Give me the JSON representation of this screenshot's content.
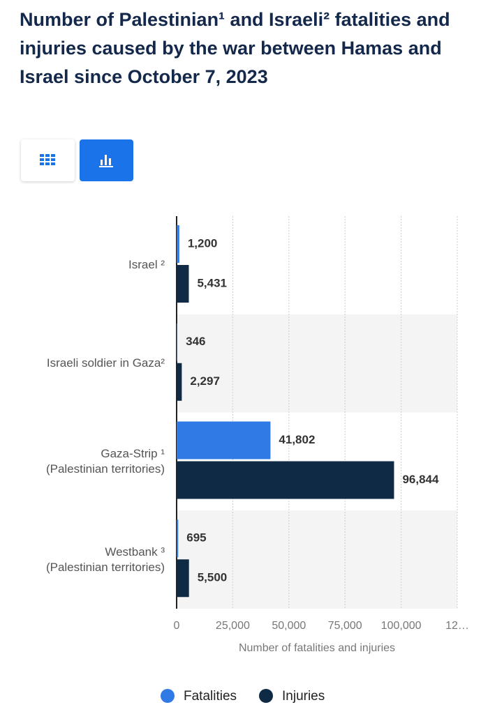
{
  "chart_data": {
    "type": "bar",
    "orientation": "horizontal",
    "title": "Number of Palestinian¹ and Israeli² fatalities and injuries caused by the war between Hamas and Israel since October 7, 2023",
    "categories": [
      "Israel ²",
      "Israeli soldier in Gaza²",
      "Gaza-Strip ¹\n(Palestinian territories)",
      "Westbank ³\n(Palestinian territories)"
    ],
    "series": [
      {
        "name": "Fatalities",
        "color": "#2f7ae5",
        "values": [
          1200,
          346,
          41802,
          695
        ],
        "value_labels": [
          "1,200",
          "346",
          "41,802",
          "695"
        ]
      },
      {
        "name": "Injuries",
        "color": "#0f2a44",
        "values": [
          5431,
          2297,
          96844,
          5500
        ],
        "value_labels": [
          "5,431",
          "2,297",
          "96,844",
          "5,500"
        ]
      }
    ],
    "xlabel": "Number of fatalities and injuries",
    "xlim": [
      0,
      125000
    ],
    "xticks": [
      0,
      {
        "value": 25000,
        "label": "25,000"
      },
      {
        "value": 50000,
        "label": "50,000"
      },
      {
        "value": 75000,
        "label": "75,000"
      },
      {
        "value": 100000,
        "label": "100,000"
      },
      {
        "value": 125000,
        "label": "12…"
      }
    ],
    "grid": true,
    "legend": "bottom"
  }
}
